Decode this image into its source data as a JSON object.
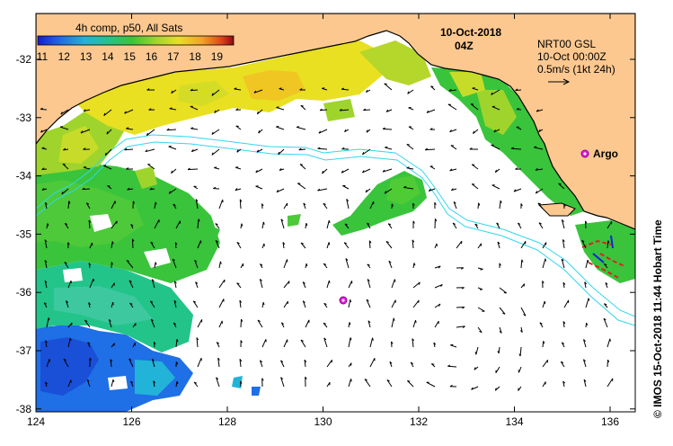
{
  "colorbar": {
    "title": "4h comp, p50, All Sats",
    "ticks": [
      "11",
      "12",
      "13",
      "14",
      "15",
      "16",
      "17",
      "18",
      "19"
    ],
    "colors": [
      "#1a1ad0",
      "#1f6fe6",
      "#22b3d8",
      "#22c48a",
      "#39c43b",
      "#9fd42c",
      "#e8e021",
      "#f2a224",
      "#e0401e",
      "#8b0a12"
    ]
  },
  "date": {
    "line1": "10-Oct-2018",
    "line2": "04Z"
  },
  "currents": {
    "line1": "NRT00 GSL",
    "line2": "10-Oct 00:00Z",
    "line3": "0.5m/s (1kt 24h)"
  },
  "argo_label": "Argo",
  "side_label": "©  IMOS 15-Oct-2018 11:44 Hobart Time",
  "x_axis": {
    "ticks": [
      "124",
      "126",
      "128",
      "130",
      "132",
      "134",
      "136"
    ]
  },
  "y_axis": {
    "ticks": [
      "-32",
      "-33",
      "-34",
      "-35",
      "-36",
      "-37",
      "-38"
    ]
  },
  "colors": {
    "land": "#fcc890",
    "coast": "#000000",
    "isobath": "#33d6ee",
    "argo": "#e020e0"
  }
}
